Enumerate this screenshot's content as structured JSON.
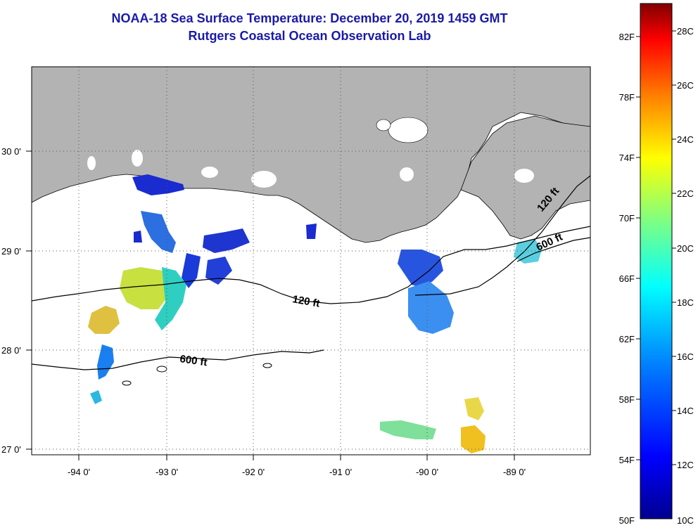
{
  "title": {
    "line1": "NOAA-18 Sea Surface Temperature:  December 20, 2019 1459 GMT",
    "line2": "Rutgers Coastal Ocean Observation Lab"
  },
  "axes": {
    "x_ticks": [
      "-94 0'",
      "-93 0'",
      "-92 0'",
      "-91 0'",
      "-90 0'",
      "-89 0'"
    ],
    "y_ticks": [
      "30 0'",
      "29 0'",
      "28 0'",
      "27 0'"
    ]
  },
  "contours": {
    "shelf_120": "120 ft",
    "shelf_600": "600 ft"
  },
  "colorbar": {
    "fahrenheit": [
      "82F",
      "78F",
      "74F",
      "70F",
      "66F",
      "62F",
      "58F",
      "54F",
      "50F"
    ],
    "celsius": [
      "28C",
      "26C",
      "24C",
      "22C",
      "20C",
      "18C",
      "16C",
      "14C",
      "12C",
      "10C"
    ],
    "colors": [
      "#00008f",
      "#0000ff",
      "#0080ff",
      "#00ffff",
      "#80ff80",
      "#ffff00",
      "#ff8000",
      "#ff0000",
      "#800000"
    ]
  },
  "colors": {
    "land": "#b3b3b3",
    "water": "#ffffff",
    "title": "#1a1aa8"
  }
}
